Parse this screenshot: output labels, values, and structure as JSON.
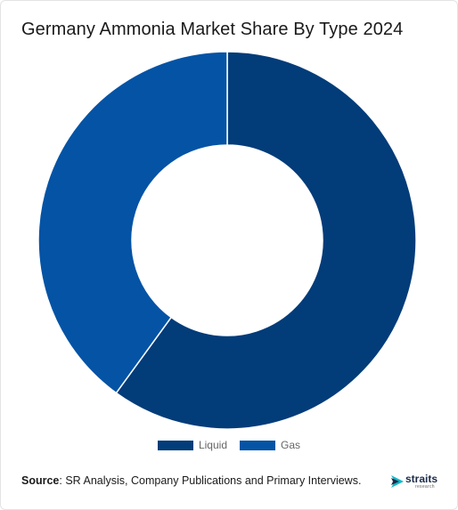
{
  "title": "Germany Ammonia Market Share By Type 2024",
  "chart_data": {
    "type": "pie",
    "variant": "donut",
    "categories": [
      "Liquid",
      "Gas"
    ],
    "values": [
      60,
      40
    ],
    "colors": [
      "#023c79",
      "#0453a5"
    ],
    "legend_position": "bottom"
  },
  "source": {
    "label": "Source",
    "text": ": SR Analysis, Company Publications and Primary Interviews."
  },
  "logo": {
    "name": "straits",
    "sub": "research"
  }
}
